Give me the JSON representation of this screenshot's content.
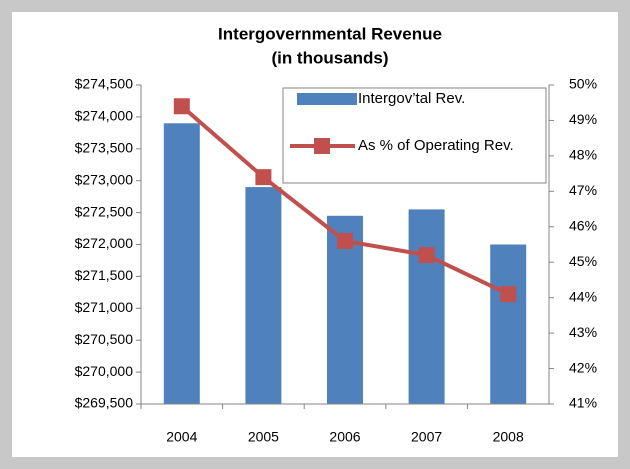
{
  "chart_data": {
    "type": "bar",
    "title": "Intergovernmental Revenue",
    "subtitle": "(in thousands)",
    "categories": [
      "2004",
      "2005",
      "2006",
      "2007",
      "2008"
    ],
    "series": [
      {
        "name": "Intergov’tal Rev.",
        "type": "bar",
        "color": "#4f81bd",
        "values": [
          273900,
          272900,
          272450,
          272550,
          272000
        ]
      },
      {
        "name": "As % of Operating Rev.",
        "type": "line",
        "axis": "y2",
        "color": "#c0504d",
        "values": [
          49.4,
          47.4,
          45.6,
          45.2,
          44.1
        ]
      }
    ],
    "ylim": [
      269500,
      274500
    ],
    "yticks": [
      {
        "value": 269500,
        "label": "$269,500"
      },
      {
        "value": 270000,
        "label": "$270,000"
      },
      {
        "value": 270500,
        "label": "$270,500"
      },
      {
        "value": 271000,
        "label": "$271,000"
      },
      {
        "value": 271500,
        "label": "$271,500"
      },
      {
        "value": 272000,
        "label": "$272,000"
      },
      {
        "value": 272500,
        "label": "$272,500"
      },
      {
        "value": 273000,
        "label": "$273,000"
      },
      {
        "value": 273500,
        "label": "$273,500"
      },
      {
        "value": 274000,
        "label": "$274,000"
      },
      {
        "value": 274500,
        "label": "$274,500"
      }
    ],
    "y2lim": [
      41,
      50
    ],
    "y2ticks": [
      {
        "value": 41,
        "label": "41%"
      },
      {
        "value": 42,
        "label": "42%"
      },
      {
        "value": 43,
        "label": "43%"
      },
      {
        "value": 44,
        "label": "44%"
      },
      {
        "value": 45,
        "label": "45%"
      },
      {
        "value": 46,
        "label": "46%"
      },
      {
        "value": 47,
        "label": "47%"
      },
      {
        "value": 48,
        "label": "48%"
      },
      {
        "value": 49,
        "label": "49%"
      },
      {
        "value": 50,
        "label": "50%"
      }
    ],
    "legend": "top-right"
  }
}
